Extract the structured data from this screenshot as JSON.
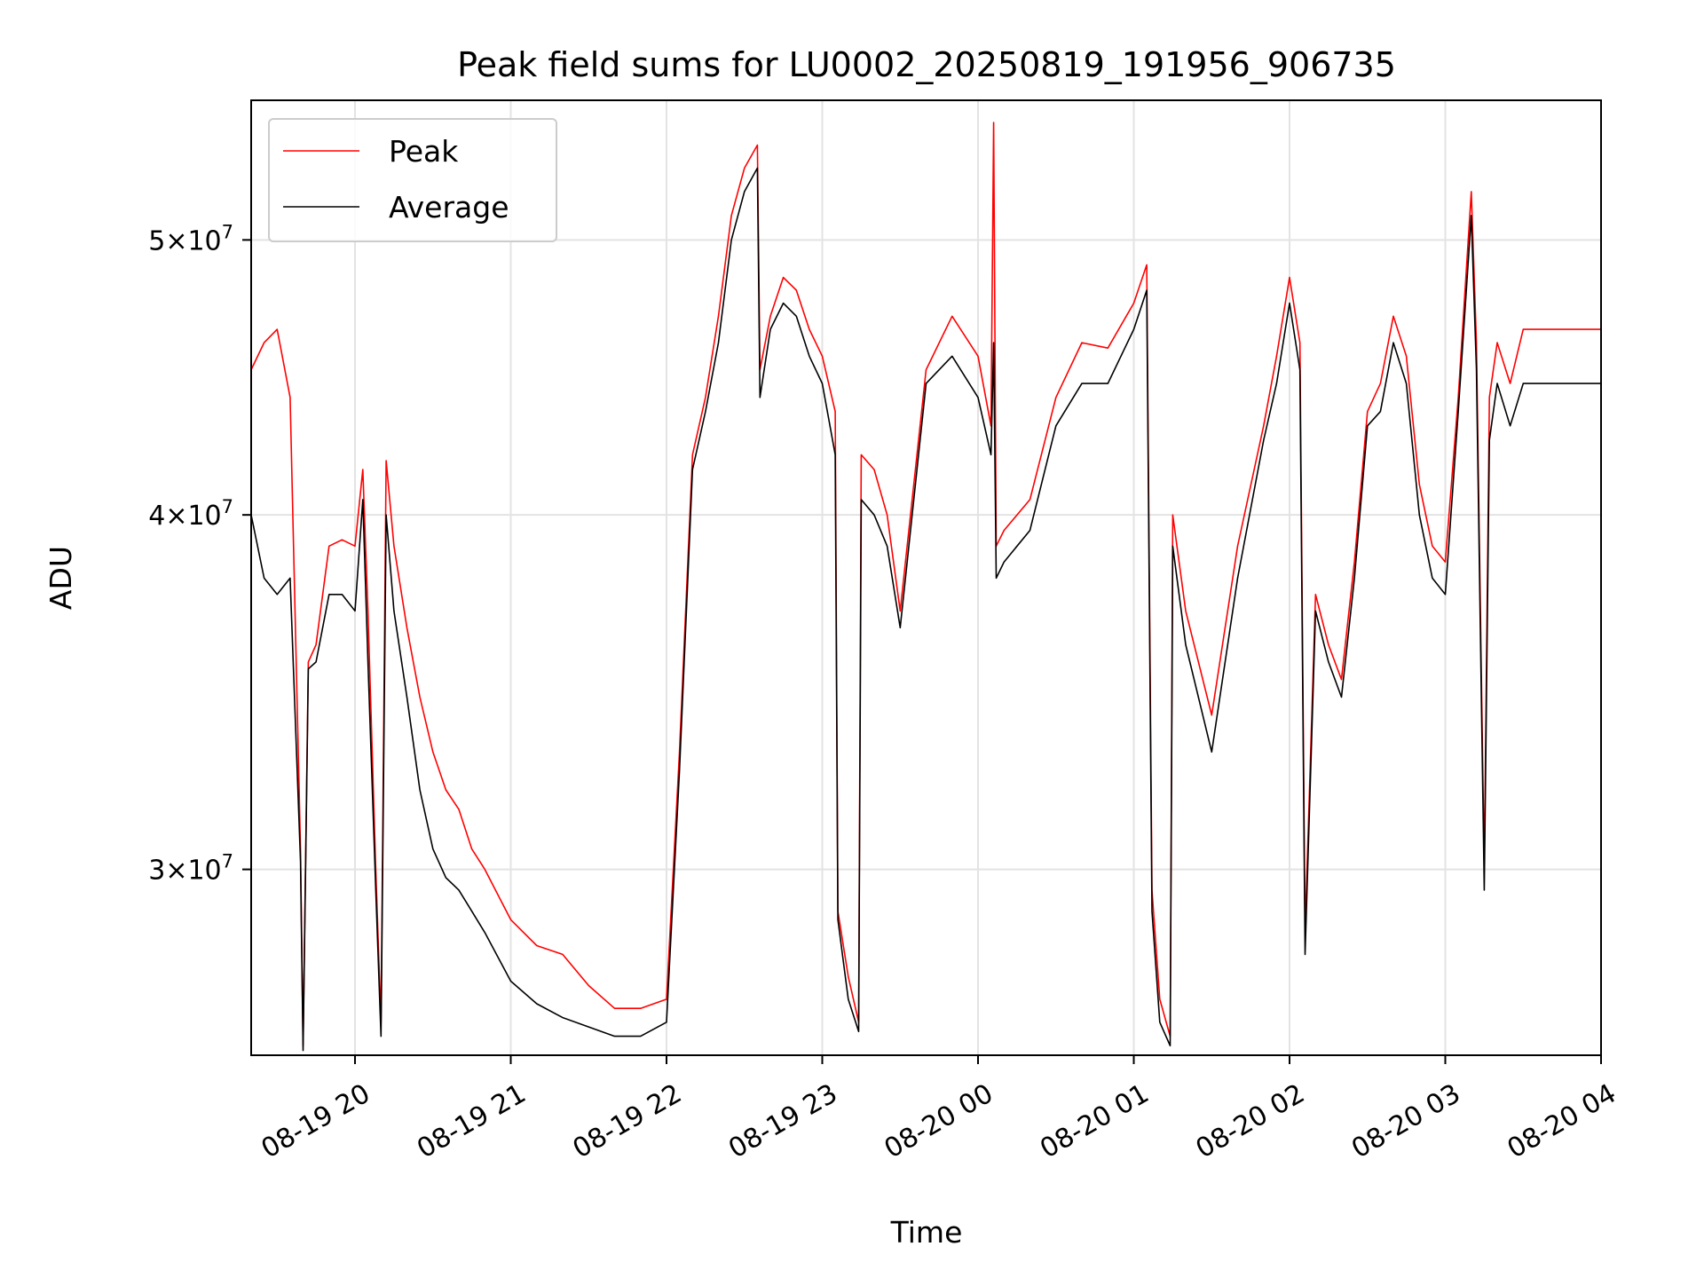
{
  "chart_data": {
    "type": "line",
    "title": "Peak field sums for LU0002_20250819_191956_906735",
    "xlabel": "Time",
    "ylabel": "ADU",
    "y_scale": "log",
    "xlim": [
      "2025-08-19T19:20",
      "2025-08-20T04:00"
    ],
    "ylim": [
      25800000,
      56000000
    ],
    "x_ticks": [
      {
        "value": "2025-08-19T20:00",
        "label": "08-19 20"
      },
      {
        "value": "2025-08-19T21:00",
        "label": "08-19 21"
      },
      {
        "value": "2025-08-19T22:00",
        "label": "08-19 22"
      },
      {
        "value": "2025-08-19T23:00",
        "label": "08-19 23"
      },
      {
        "value": "2025-08-20T00:00",
        "label": "08-20 00"
      },
      {
        "value": "2025-08-20T01:00",
        "label": "08-20 01"
      },
      {
        "value": "2025-08-20T02:00",
        "label": "08-20 02"
      },
      {
        "value": "2025-08-20T03:00",
        "label": "08-20 03"
      },
      {
        "value": "2025-08-20T04:00",
        "label": "08-20 04"
      }
    ],
    "y_ticks": [
      {
        "value": 30000000,
        "mantissa": "3",
        "exponent": "7"
      },
      {
        "value": 40000000,
        "mantissa": "4",
        "exponent": "7"
      },
      {
        "value": 50000000,
        "mantissa": "5",
        "exponent": "7"
      }
    ],
    "grid": true,
    "legend_position": "top-left",
    "series": [
      {
        "name": "Peak",
        "color": "#ff0000",
        "x": [
          "2025-08-19T19:20",
          "2025-08-19T19:25",
          "2025-08-19T19:30",
          "2025-08-19T19:35",
          "2025-08-19T19:39",
          "2025-08-19T19:40",
          "2025-08-19T19:42",
          "2025-08-19T19:45",
          "2025-08-19T19:50",
          "2025-08-19T19:55",
          "2025-08-19T20:00",
          "2025-08-19T20:03",
          "2025-08-19T20:05",
          "2025-08-19T20:08",
          "2025-08-19T20:10",
          "2025-08-19T20:12",
          "2025-08-19T20:15",
          "2025-08-19T20:20",
          "2025-08-19T20:25",
          "2025-08-19T20:30",
          "2025-08-19T20:35",
          "2025-08-19T20:40",
          "2025-08-19T20:45",
          "2025-08-19T20:50",
          "2025-08-19T21:00",
          "2025-08-19T21:10",
          "2025-08-19T21:20",
          "2025-08-19T21:30",
          "2025-08-19T21:40",
          "2025-08-19T21:50",
          "2025-08-19T22:00",
          "2025-08-19T22:05",
          "2025-08-19T22:10",
          "2025-08-19T22:15",
          "2025-08-19T22:20",
          "2025-08-19T22:25",
          "2025-08-19T22:30",
          "2025-08-19T22:35",
          "2025-08-19T22:36",
          "2025-08-19T22:40",
          "2025-08-19T22:45",
          "2025-08-19T22:50",
          "2025-08-19T22:55",
          "2025-08-19T23:00",
          "2025-08-19T23:05",
          "2025-08-19T23:06",
          "2025-08-19T23:10",
          "2025-08-19T23:14",
          "2025-08-19T23:15",
          "2025-08-19T23:20",
          "2025-08-19T23:25",
          "2025-08-19T23:30",
          "2025-08-19T23:40",
          "2025-08-19T23:50",
          "2025-08-20T00:00",
          "2025-08-20T00:05",
          "2025-08-20T00:06",
          "2025-08-20T00:07",
          "2025-08-20T00:10",
          "2025-08-20T00:20",
          "2025-08-20T00:30",
          "2025-08-20T00:40",
          "2025-08-20T00:50",
          "2025-08-20T01:00",
          "2025-08-20T01:05",
          "2025-08-20T01:07",
          "2025-08-20T01:10",
          "2025-08-20T01:14",
          "2025-08-20T01:15",
          "2025-08-20T01:20",
          "2025-08-20T01:30",
          "2025-08-20T01:40",
          "2025-08-20T01:50",
          "2025-08-20T01:55",
          "2025-08-20T02:00",
          "2025-08-20T02:04",
          "2025-08-20T02:06",
          "2025-08-20T02:10",
          "2025-08-20T02:15",
          "2025-08-20T02:20",
          "2025-08-20T02:25",
          "2025-08-20T02:30",
          "2025-08-20T02:35",
          "2025-08-20T02:40",
          "2025-08-20T02:45",
          "2025-08-20T02:50",
          "2025-08-20T02:55",
          "2025-08-20T03:00",
          "2025-08-20T03:05",
          "2025-08-20T03:10",
          "2025-08-20T03:12",
          "2025-08-20T03:15",
          "2025-08-20T03:17",
          "2025-08-20T03:20",
          "2025-08-20T03:25",
          "2025-08-20T03:30",
          "2025-08-20T03:40",
          "2025-08-20T03:50",
          "2025-08-20T04:00"
        ],
        "values": [
          45000000,
          46000000,
          46500000,
          44000000,
          30500000,
          26000000,
          35500000,
          36000000,
          39000000,
          39200000,
          39000000,
          41500000,
          37000000,
          30000000,
          26500000,
          41800000,
          39000000,
          36500000,
          34500000,
          33000000,
          32000000,
          31500000,
          30500000,
          30000000,
          28800000,
          28200000,
          28000000,
          27300000,
          26800000,
          26800000,
          27000000,
          33000000,
          42000000,
          44000000,
          47000000,
          51000000,
          53000000,
          54000000,
          45000000,
          47000000,
          48500000,
          48000000,
          46500000,
          45500000,
          43500000,
          29000000,
          27500000,
          26500000,
          42000000,
          41500000,
          40000000,
          37000000,
          45000000,
          47000000,
          45500000,
          43000000,
          55000000,
          39000000,
          39500000,
          40500000,
          44000000,
          46000000,
          45800000,
          47500000,
          49000000,
          29500000,
          27000000,
          26200000,
          40000000,
          37000000,
          34000000,
          39000000,
          43000000,
          45500000,
          48500000,
          46000000,
          28500000,
          37500000,
          36000000,
          35000000,
          38500000,
          43500000,
          44500000,
          47000000,
          45500000,
          41000000,
          39000000,
          38500000,
          44000000,
          52000000,
          46000000,
          30000000,
          44000000,
          46000000,
          44500000,
          46500000,
          46500000,
          46500000,
          46500000
        ]
      },
      {
        "name": "Average",
        "color": "#000000",
        "x": [
          "2025-08-19T19:20",
          "2025-08-19T19:25",
          "2025-08-19T19:30",
          "2025-08-19T19:35",
          "2025-08-19T19:39",
          "2025-08-19T19:40",
          "2025-08-19T19:42",
          "2025-08-19T19:45",
          "2025-08-19T19:50",
          "2025-08-19T19:55",
          "2025-08-19T20:00",
          "2025-08-19T20:03",
          "2025-08-19T20:05",
          "2025-08-19T20:08",
          "2025-08-19T20:10",
          "2025-08-19T20:12",
          "2025-08-19T20:15",
          "2025-08-19T20:20",
          "2025-08-19T20:25",
          "2025-08-19T20:30",
          "2025-08-19T20:35",
          "2025-08-19T20:40",
          "2025-08-19T20:45",
          "2025-08-19T20:50",
          "2025-08-19T21:00",
          "2025-08-19T21:10",
          "2025-08-19T21:20",
          "2025-08-19T21:30",
          "2025-08-19T21:40",
          "2025-08-19T21:50",
          "2025-08-19T22:00",
          "2025-08-19T22:05",
          "2025-08-19T22:10",
          "2025-08-19T22:15",
          "2025-08-19T22:20",
          "2025-08-19T22:25",
          "2025-08-19T22:30",
          "2025-08-19T22:35",
          "2025-08-19T22:36",
          "2025-08-19T22:40",
          "2025-08-19T22:45",
          "2025-08-19T22:50",
          "2025-08-19T22:55",
          "2025-08-19T23:00",
          "2025-08-19T23:05",
          "2025-08-19T23:06",
          "2025-08-19T23:10",
          "2025-08-19T23:14",
          "2025-08-19T23:15",
          "2025-08-19T23:20",
          "2025-08-19T23:25",
          "2025-08-19T23:30",
          "2025-08-19T23:40",
          "2025-08-19T23:50",
          "2025-08-20T00:00",
          "2025-08-20T00:05",
          "2025-08-20T00:06",
          "2025-08-20T00:07",
          "2025-08-20T00:10",
          "2025-08-20T00:20",
          "2025-08-20T00:30",
          "2025-08-20T00:40",
          "2025-08-20T00:50",
          "2025-08-20T01:00",
          "2025-08-20T01:05",
          "2025-08-20T01:07",
          "2025-08-20T01:10",
          "2025-08-20T01:14",
          "2025-08-20T01:15",
          "2025-08-20T01:20",
          "2025-08-20T01:30",
          "2025-08-20T01:40",
          "2025-08-20T01:50",
          "2025-08-20T01:55",
          "2025-08-20T02:00",
          "2025-08-20T02:04",
          "2025-08-20T02:06",
          "2025-08-20T02:10",
          "2025-08-20T02:15",
          "2025-08-20T02:20",
          "2025-08-20T02:25",
          "2025-08-20T02:30",
          "2025-08-20T02:35",
          "2025-08-20T02:40",
          "2025-08-20T02:45",
          "2025-08-20T02:50",
          "2025-08-20T02:55",
          "2025-08-20T03:00",
          "2025-08-20T03:05",
          "2025-08-20T03:10",
          "2025-08-20T03:12",
          "2025-08-20T03:15",
          "2025-08-20T03:17",
          "2025-08-20T03:20",
          "2025-08-20T03:25",
          "2025-08-20T03:30",
          "2025-08-20T03:40",
          "2025-08-20T03:50",
          "2025-08-20T04:00"
        ],
        "values": [
          40000000,
          38000000,
          37500000,
          38000000,
          30200000,
          25900000,
          35300000,
          35500000,
          37500000,
          37500000,
          37000000,
          40500000,
          35500000,
          29500000,
          26200000,
          40000000,
          37000000,
          34500000,
          32000000,
          30500000,
          29800000,
          29500000,
          29000000,
          28500000,
          27400000,
          26900000,
          26600000,
          26400000,
          26200000,
          26200000,
          26500000,
          32500000,
          41500000,
          43500000,
          46000000,
          50000000,
          52000000,
          53000000,
          44000000,
          46500000,
          47500000,
          47000000,
          45500000,
          44500000,
          42000000,
          28800000,
          27000000,
          26300000,
          40500000,
          40000000,
          39000000,
          36500000,
          44500000,
          45500000,
          44000000,
          42000000,
          46000000,
          38000000,
          38500000,
          39500000,
          43000000,
          44500000,
          44500000,
          46500000,
          48000000,
          29000000,
          26500000,
          26000000,
          39000000,
          36000000,
          33000000,
          38000000,
          42500000,
          44500000,
          47500000,
          45000000,
          28000000,
          37000000,
          35500000,
          34500000,
          38000000,
          43000000,
          43500000,
          46000000,
          44500000,
          40000000,
          38000000,
          37500000,
          43500000,
          51000000,
          45000000,
          29500000,
          42500000,
          44500000,
          43000000,
          44500000,
          44500000,
          44500000,
          44500000
        ]
      }
    ]
  }
}
